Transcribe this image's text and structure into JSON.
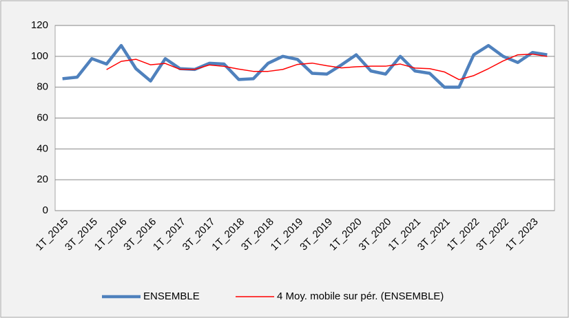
{
  "chart_data": {
    "type": "line",
    "categories": [
      "1T_2015",
      null,
      "3T_2015",
      null,
      "1T_2016",
      null,
      "3T_2016",
      null,
      "1T_2017",
      null,
      "3T_2017",
      null,
      "1T_2018",
      null,
      "3T_2018",
      null,
      "1T_2019",
      null,
      "3T_2019",
      null,
      "1T_2020",
      null,
      "3T_2020",
      null,
      "1T_2021",
      null,
      "3T_2021",
      null,
      "1T_2022",
      null,
      "3T_2022",
      null,
      "1T_2023",
      null
    ],
    "series": [
      {
        "name": "ENSEMBLE",
        "color": "#4f81bd",
        "values": [
          85.5,
          86.5,
          98.5,
          95,
          107,
          92,
          84,
          98.5,
          92,
          91.5,
          95.5,
          95,
          85,
          85.5,
          95.5,
          100,
          98,
          89,
          88.5,
          94.5,
          101,
          90.5,
          88.5,
          100,
          90.5,
          89,
          80,
          80,
          101,
          107,
          100,
          96,
          102.5,
          101
        ]
      },
      {
        "name": "4 Moy. mobile sur pér. (ENSEMBLE)",
        "color": "#ff0000",
        "values": [
          null,
          null,
          null,
          91.4,
          96.75,
          98.1,
          94.5,
          95.4,
          91.6,
          91.5,
          94.4,
          93.5,
          91.75,
          90.25,
          90.25,
          91.5,
          94.75,
          95.6,
          93.9,
          92.5,
          93.25,
          93.6,
          93.6,
          95,
          92.4,
          92,
          89.9,
          84.9,
          87.5,
          92,
          97,
          101,
          101.4,
          99.9
        ]
      }
    ],
    "ylim": [
      0,
      120
    ],
    "yticks": [
      0,
      20,
      40,
      60,
      80,
      100,
      120
    ],
    "grid": true,
    "legend": "bottom"
  }
}
